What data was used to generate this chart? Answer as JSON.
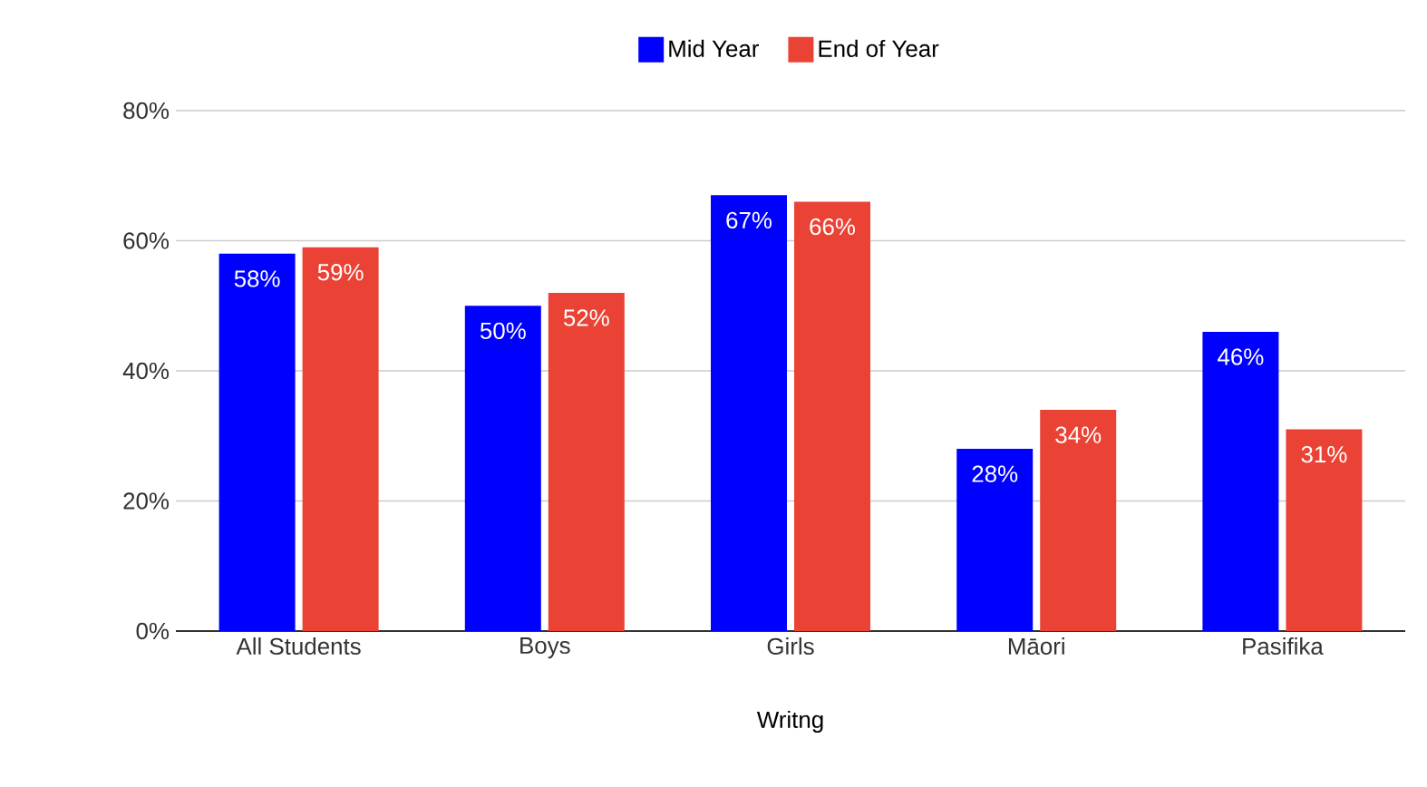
{
  "chart_data": {
    "type": "bar",
    "xlabel": "Writng",
    "categories": [
      "All Students",
      "Boys",
      "Girls",
      "Māori",
      "Pasifika"
    ],
    "series": [
      {
        "name": "Mid Year",
        "color": "#0000ff",
        "values": [
          58,
          50,
          67,
          28,
          46
        ],
        "value_labels": [
          "58%",
          "50%",
          "67%",
          "28%",
          "46%"
        ]
      },
      {
        "name": "End of Year",
        "color": "#ea4335",
        "values": [
          59,
          52,
          66,
          34,
          31
        ],
        "value_labels": [
          "59%",
          "52%",
          "66%",
          "34%",
          "31%"
        ]
      }
    ],
    "ylim": [
      0,
      80
    ],
    "yticks": [
      {
        "value": 0,
        "label": "0%"
      },
      {
        "value": 20,
        "label": "20%"
      },
      {
        "value": 40,
        "label": "40%"
      },
      {
        "value": 60,
        "label": "60%"
      },
      {
        "value": 80,
        "label": "80%"
      }
    ],
    "grid": "y",
    "legend": "top"
  }
}
